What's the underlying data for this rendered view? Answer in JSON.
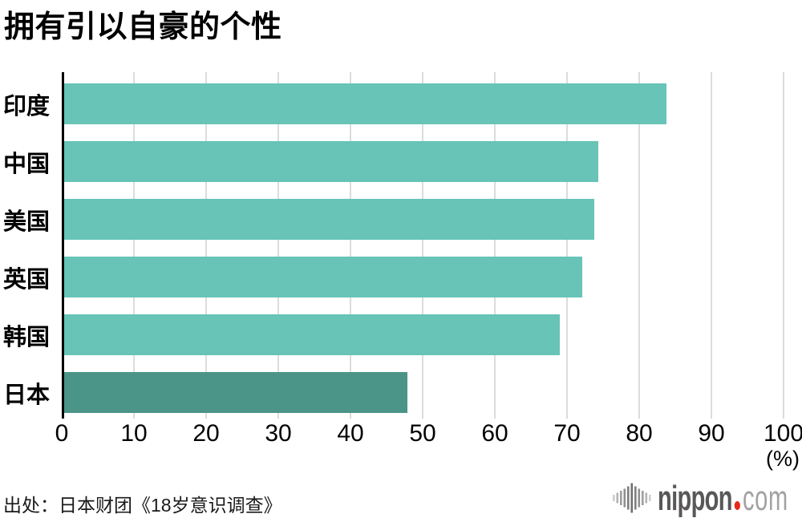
{
  "title": "拥有引以自豪的个性",
  "source": "出处：日本财团《18岁意识调查》",
  "logo": {
    "name": "nippon.com",
    "text_main": "nippon",
    "text_suffix": "com",
    "icon": "soundwave-bars-icon",
    "main_color": "#595757",
    "suffix_color": "#a2a2a2",
    "dot_color": "#e8281a"
  },
  "colors": {
    "bar_default": "#67c4b7",
    "bar_highlight": "#4b9488",
    "gridline": "#dcdcdc",
    "axis_line": "#000000"
  },
  "chart_data": {
    "type": "bar",
    "orientation": "horizontal",
    "title": "拥有引以自豪的个性",
    "categories": [
      "印度",
      "中国",
      "美国",
      "英国",
      "韩国",
      "日本"
    ],
    "values": [
      83.8,
      74.3,
      73.8,
      72.1,
      69.0,
      47.9
    ],
    "highlighted_category": "日本",
    "xlabel": "(%)",
    "ylabel": "",
    "xlim": [
      0,
      100
    ],
    "xticks": [
      0,
      10,
      20,
      30,
      40,
      50,
      60,
      70,
      80,
      90,
      100
    ],
    "unit_label": "(%)",
    "grid": true,
    "legend": false
  }
}
